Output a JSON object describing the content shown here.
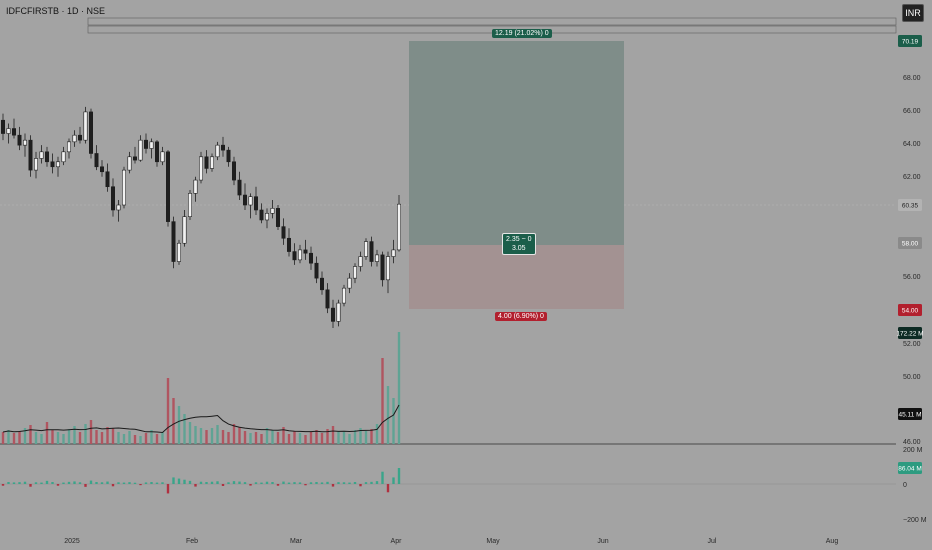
{
  "header": {
    "symbol_title": "IDFCFIRSTB · 1D · NSE",
    "currency": "INR"
  },
  "price_axis": {
    "ticks": [
      "68.00",
      "66.00",
      "64.00",
      "62.00",
      "56.00",
      "52.00",
      "50.00",
      "46.00"
    ],
    "badges": [
      {
        "label": "70.19",
        "color": "#1b5e4a"
      },
      {
        "label": "60.35",
        "color": "#b3b3b3"
      },
      {
        "label": "58.00",
        "color": "#8a8a8a"
      },
      {
        "label": "54.00",
        "color": "#b2202e"
      },
      {
        "label": "172.22 M",
        "color": "#0d2b24"
      },
      {
        "label": "45.11 M",
        "color": "#111111"
      }
    ]
  },
  "osc_axis": {
    "ticks": [
      "200 M",
      "0",
      "−200 M"
    ],
    "badge": "86.04 M",
    "badge_color": "#2d9b80"
  },
  "time_axis": {
    "labels": [
      "2025",
      "Feb",
      "Mar",
      "Apr",
      "May",
      "Jun",
      "Jul",
      "Aug"
    ]
  },
  "position_tool": {
    "target_label": "12.19 (21.02%) 0",
    "center_label_1": "2.35 ~ 0",
    "center_label_2": "3.05",
    "stop_label": "4.00 (6.90%) 0",
    "entry": 58.0,
    "target": 70.19,
    "stop": 54.0
  },
  "chart_data": {
    "type": "candlestick",
    "symbol": "IDFCFIRSTB",
    "interval": "1D",
    "exchange": "NSE",
    "approx_ohlc": [
      [
        65.4,
        65.8,
        64.2,
        64.6
      ],
      [
        64.6,
        65.2,
        64.0,
        64.9
      ],
      [
        64.9,
        65.5,
        64.3,
        64.5
      ],
      [
        64.5,
        65.0,
        63.6,
        63.9
      ],
      [
        63.9,
        64.6,
        63.2,
        64.2
      ],
      [
        64.2,
        64.5,
        62.0,
        62.4
      ],
      [
        62.4,
        63.5,
        61.9,
        63.1
      ],
      [
        63.1,
        63.9,
        62.8,
        63.5
      ],
      [
        63.5,
        63.8,
        62.6,
        62.9
      ],
      [
        62.9,
        63.4,
        62.2,
        62.6
      ],
      [
        62.6,
        63.2,
        62.0,
        62.9
      ],
      [
        62.9,
        63.8,
        62.7,
        63.5
      ],
      [
        63.5,
        64.3,
        63.1,
        64.1
      ],
      [
        64.1,
        64.8,
        63.8,
        64.5
      ],
      [
        64.5,
        65.0,
        64.0,
        64.2
      ],
      [
        64.2,
        66.2,
        64.0,
        65.9
      ],
      [
        65.9,
        66.1,
        63.1,
        63.4
      ],
      [
        63.4,
        63.9,
        62.4,
        62.6
      ],
      [
        62.6,
        63.0,
        62.0,
        62.3
      ],
      [
        62.3,
        62.8,
        61.1,
        61.4
      ],
      [
        61.4,
        61.9,
        59.6,
        60.0
      ],
      [
        60.0,
        60.6,
        59.3,
        60.3
      ],
      [
        60.3,
        62.6,
        60.1,
        62.4
      ],
      [
        62.4,
        63.5,
        62.2,
        63.2
      ],
      [
        63.2,
        63.8,
        62.8,
        63.0
      ],
      [
        63.0,
        64.5,
        62.9,
        64.2
      ],
      [
        64.2,
        64.6,
        63.4,
        63.7
      ],
      [
        63.7,
        64.3,
        63.1,
        64.1
      ],
      [
        64.1,
        64.2,
        62.6,
        62.9
      ],
      [
        62.9,
        63.8,
        62.7,
        63.5
      ],
      [
        63.5,
        63.6,
        59.0,
        59.3
      ],
      [
        59.3,
        59.6,
        56.5,
        56.9
      ],
      [
        56.9,
        58.2,
        56.7,
        58.0
      ],
      [
        58.0,
        60.0,
        57.8,
        59.6
      ],
      [
        59.6,
        61.2,
        59.4,
        61.0
      ],
      [
        61.0,
        62.0,
        60.5,
        61.8
      ],
      [
        61.8,
        63.5,
        61.6,
        63.2
      ],
      [
        63.2,
        63.6,
        62.2,
        62.5
      ],
      [
        62.5,
        63.4,
        62.3,
        63.2
      ],
      [
        63.2,
        64.1,
        63.0,
        63.9
      ],
      [
        63.9,
        64.4,
        63.2,
        63.6
      ],
      [
        63.6,
        63.8,
        62.6,
        62.9
      ],
      [
        62.9,
        63.2,
        61.5,
        61.8
      ],
      [
        61.8,
        62.3,
        60.6,
        60.9
      ],
      [
        60.9,
        61.6,
        60.0,
        60.3
      ],
      [
        60.3,
        61.0,
        59.5,
        60.8
      ],
      [
        60.8,
        61.4,
        59.7,
        60.0
      ],
      [
        60.0,
        60.4,
        59.2,
        59.4
      ],
      [
        59.4,
        60.1,
        58.9,
        59.8
      ],
      [
        59.8,
        60.6,
        59.5,
        60.1
      ],
      [
        60.1,
        60.3,
        58.8,
        59.0
      ],
      [
        59.0,
        59.5,
        57.9,
        58.3
      ],
      [
        58.3,
        58.9,
        57.2,
        57.5
      ],
      [
        57.5,
        58.0,
        56.7,
        57.0
      ],
      [
        57.0,
        57.9,
        56.8,
        57.6
      ],
      [
        57.6,
        58.2,
        57.0,
        57.4
      ],
      [
        57.4,
        57.8,
        56.4,
        56.8
      ],
      [
        56.8,
        57.2,
        55.6,
        55.9
      ],
      [
        55.9,
        56.3,
        54.9,
        55.2
      ],
      [
        55.2,
        55.6,
        53.8,
        54.1
      ],
      [
        54.1,
        54.6,
        52.9,
        53.3
      ],
      [
        53.3,
        54.6,
        53.0,
        54.4
      ],
      [
        54.4,
        55.5,
        54.2,
        55.3
      ],
      [
        55.3,
        56.2,
        55.0,
        55.9
      ],
      [
        55.9,
        56.8,
        55.6,
        56.6
      ],
      [
        56.6,
        57.5,
        56.3,
        57.2
      ],
      [
        57.2,
        58.3,
        57.0,
        58.1
      ],
      [
        58.1,
        58.4,
        56.6,
        56.9
      ],
      [
        56.9,
        57.6,
        56.6,
        57.3
      ],
      [
        57.3,
        57.5,
        55.4,
        55.8
      ],
      [
        55.8,
        57.5,
        55.0,
        57.2
      ],
      [
        57.2,
        58.2,
        56.8,
        57.6
      ],
      [
        57.6,
        60.9,
        57.5,
        60.35
      ]
    ],
    "volume_ma_last": "45.11 M",
    "oscillator_last": "86.04 M"
  }
}
